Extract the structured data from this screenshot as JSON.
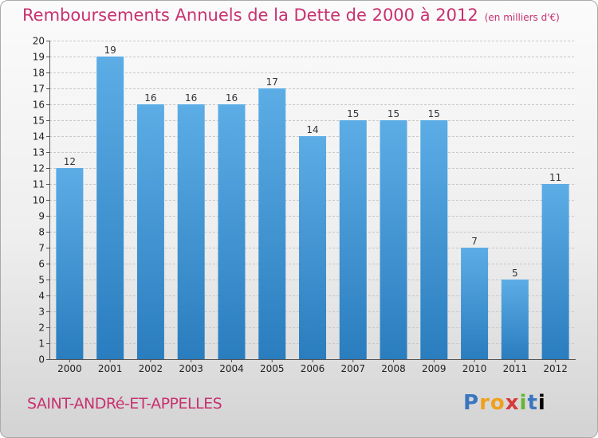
{
  "header": {
    "title": "Remboursements Annuels de la Dette de 2000 à 2012",
    "unit": "(en milliers d'€)"
  },
  "footer": {
    "commune": "SAINT-ANDRé-ET-APPELLES",
    "brand": "Proxiti"
  },
  "colors": {
    "bar_top": "#5cade6",
    "bar_bottom": "#2a7dbe",
    "title": "#c8316f",
    "grid": "#c8c8c8"
  },
  "chart_data": {
    "type": "bar",
    "title": "Remboursements Annuels de la Dette de 2000 à 2012",
    "ylabel": "en milliers d'€",
    "xlabel": "",
    "categories": [
      "2000",
      "2001",
      "2002",
      "2003",
      "2004",
      "2005",
      "2006",
      "2007",
      "2008",
      "2009",
      "2010",
      "2011",
      "2012"
    ],
    "values": [
      12,
      19,
      16,
      16,
      16,
      17,
      14,
      15,
      15,
      15,
      7,
      5,
      11
    ],
    "ylim": [
      0,
      20
    ],
    "yticks": [
      0,
      1,
      2,
      3,
      4,
      5,
      6,
      7,
      8,
      9,
      10,
      11,
      12,
      13,
      14,
      15,
      16,
      17,
      18,
      19,
      20
    ],
    "grid": true
  }
}
